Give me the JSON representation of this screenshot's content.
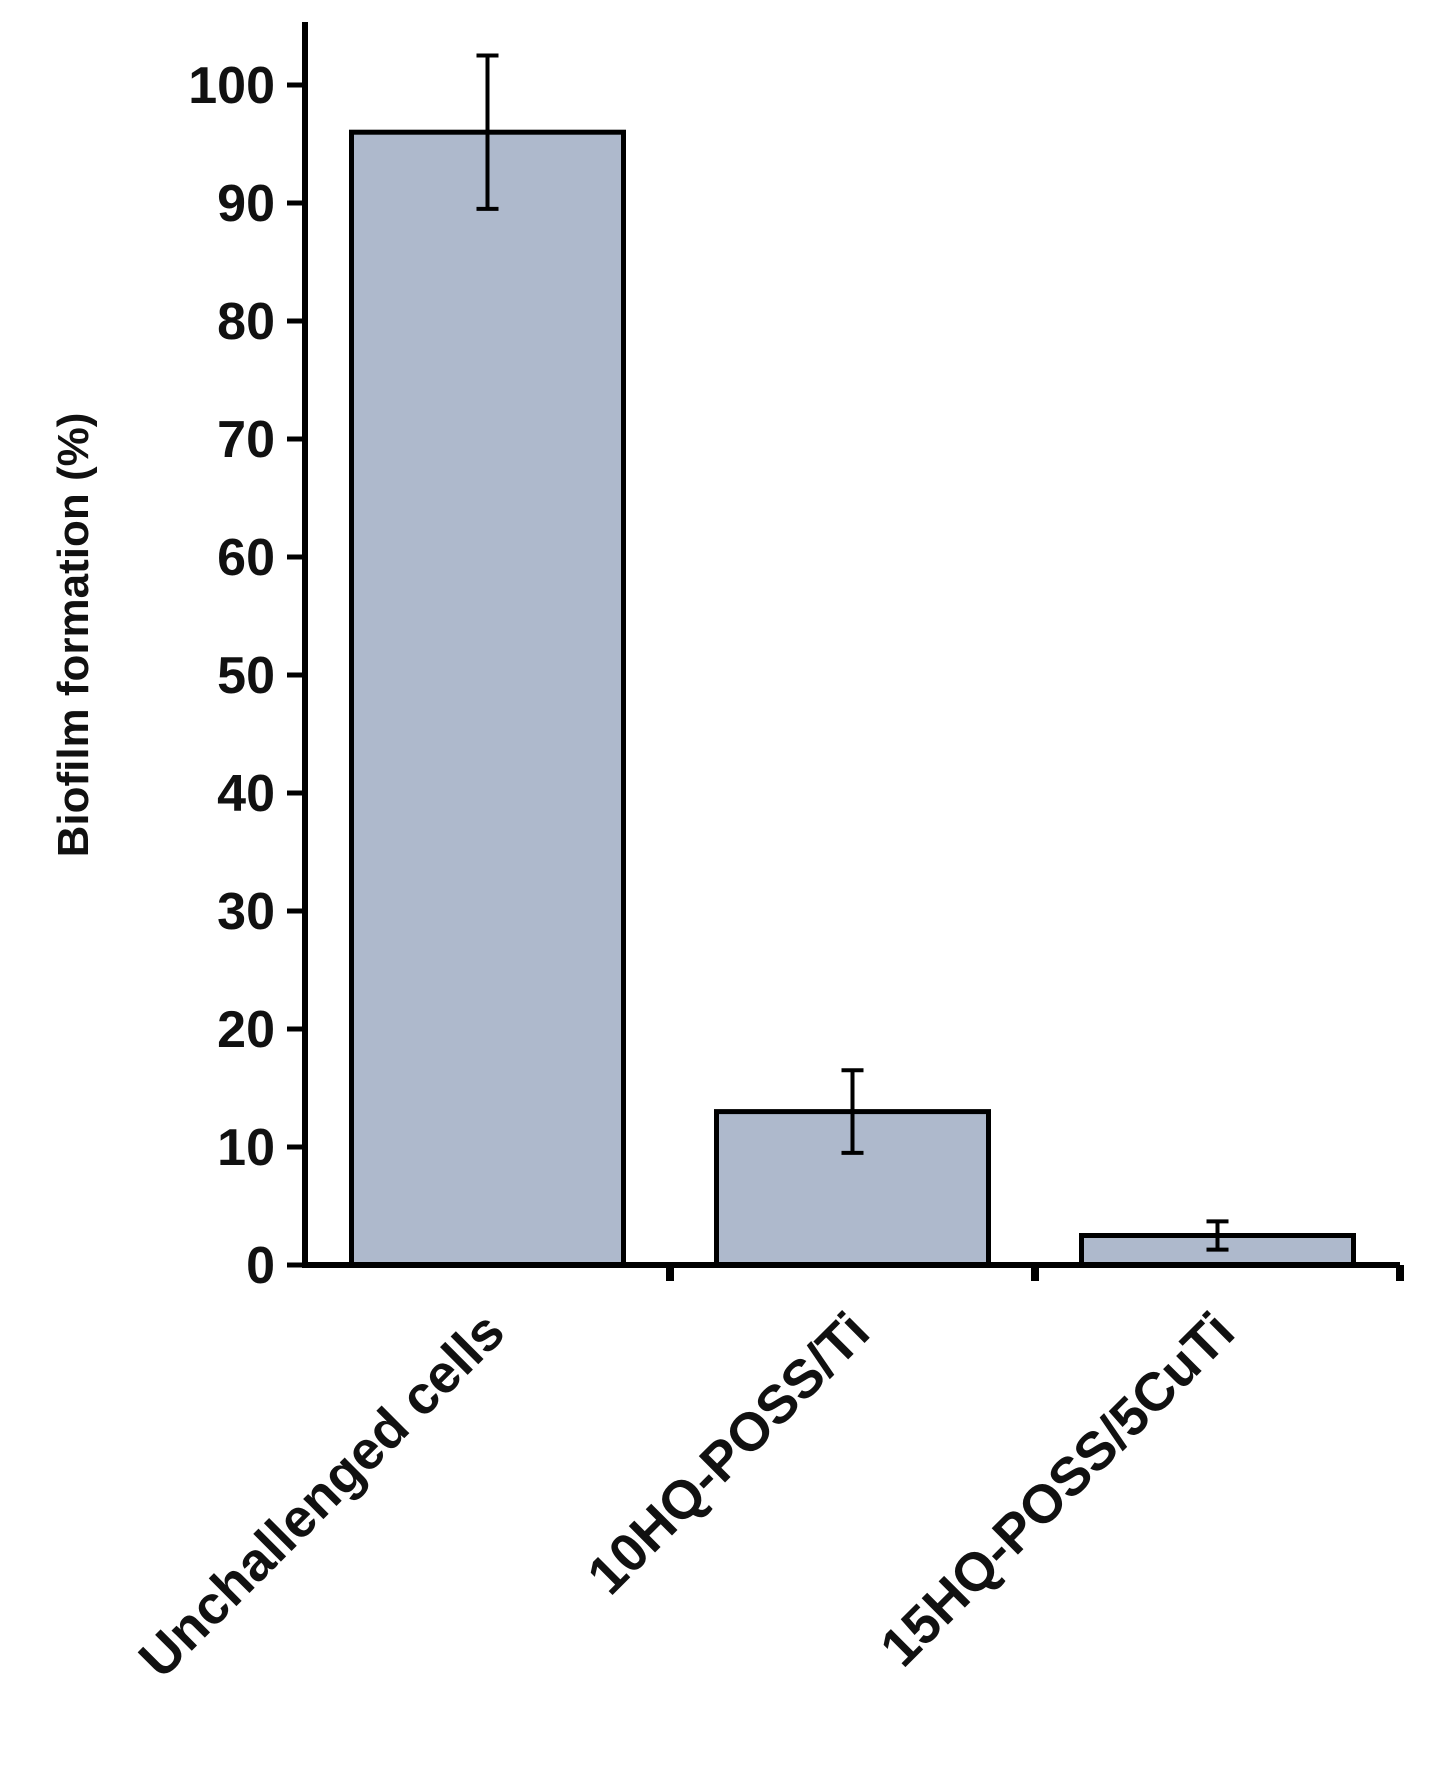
{
  "colors": {
    "bar_fill": "#aeb9cc",
    "stroke": "#000000",
    "text": "#111111",
    "background": "#ffffff"
  },
  "chart_data": {
    "type": "bar",
    "title": "",
    "xlabel": "",
    "ylabel": "Biofilm formation (%)",
    "ylim": [
      0,
      100
    ],
    "yticks": [
      0,
      10,
      20,
      30,
      40,
      50,
      60,
      70,
      80,
      90,
      100
    ],
    "grid": false,
    "legend": "none",
    "categories": [
      "Unchallenged cells",
      "10HQ-POSS/Ti",
      "15HQ-POSS/5CuTi"
    ],
    "values": [
      96,
      13,
      2.5
    ],
    "error": [
      6.5,
      3.5,
      1.2
    ]
  }
}
